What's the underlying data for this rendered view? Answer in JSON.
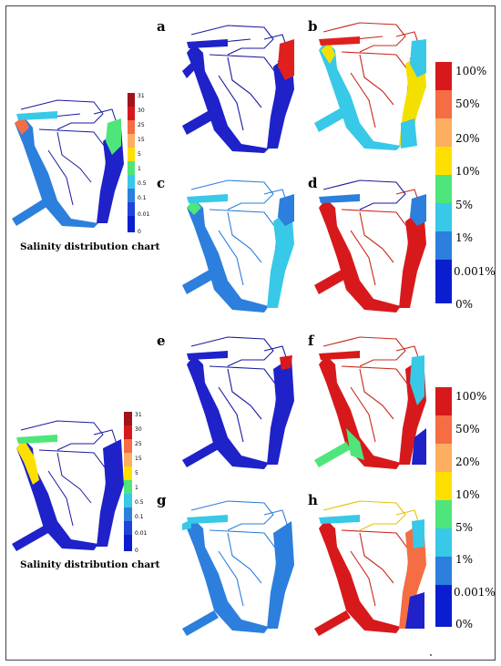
{
  "panels": [
    {
      "id": "a",
      "letter": "a"
    },
    {
      "id": "b",
      "letter": "b"
    },
    {
      "id": "c",
      "letter": "c"
    },
    {
      "id": "d",
      "letter": "d"
    },
    {
      "id": "e",
      "letter": "e"
    },
    {
      "id": "f",
      "letter": "f"
    },
    {
      "id": "g",
      "letter": "g"
    },
    {
      "id": "h",
      "letter": "h"
    }
  ],
  "salinity_chart_1": {
    "caption": "Salinity distribution chart",
    "ticks": [
      "31",
      "30",
      "25",
      "15",
      "5",
      "1",
      "0.5",
      "0.1",
      "0.01",
      "0"
    ]
  },
  "salinity_chart_2": {
    "caption": "Salinity distribution chart",
    "ticks": [
      "31",
      "30",
      "25",
      "15",
      "5",
      "1",
      "0.5",
      "0.1",
      "0.01",
      "0"
    ]
  },
  "percent_legend_1": {
    "ticks": [
      "100%",
      "50%",
      "20%",
      "10%",
      "5%",
      "1%",
      "0.001%",
      "0%"
    ]
  },
  "percent_legend_2": {
    "ticks": [
      "100%",
      "50%",
      "20%",
      "10%",
      "5%",
      "1%",
      "0.001%",
      "0%"
    ]
  },
  "colors": {
    "scale": [
      "#d7191c",
      "#f46d43",
      "#fdae61",
      "#fee000",
      "#4ee67a",
      "#38c8e8",
      "#2c7fdc",
      "#0a1ed0"
    ]
  }
}
